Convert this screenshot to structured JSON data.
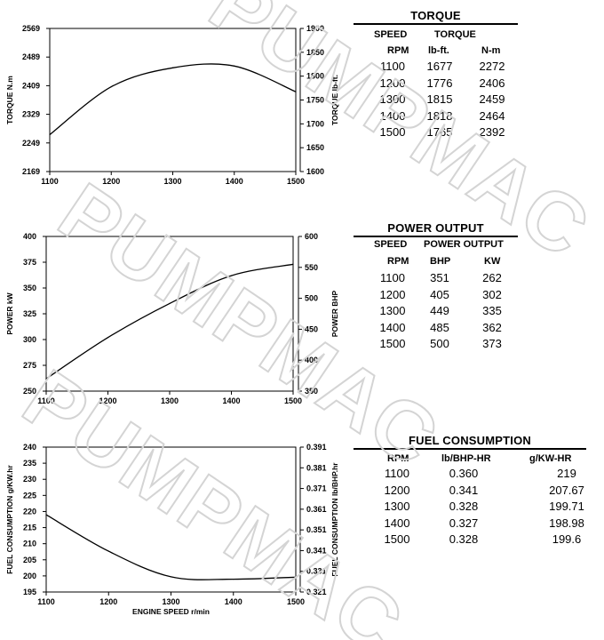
{
  "watermark": "PUMPMAC",
  "chart_data": [
    {
      "type": "line",
      "xlabel": "",
      "x": [
        1100,
        1200,
        1300,
        1400,
        1500
      ],
      "xlim": [
        1100,
        1500
      ],
      "xticks": [
        1100,
        1200,
        1300,
        1400,
        1500
      ],
      "ylabel": "TORQUE   N.m",
      "ylim": [
        2169,
        2569
      ],
      "yticks": [
        2169,
        2249,
        2329,
        2409,
        2489,
        2569
      ],
      "y2label": "TORQUE   lb-ft.",
      "y2lim": [
        1600,
        1900
      ],
      "y2ticks": [
        1600,
        1650,
        1700,
        1750,
        1800,
        1850,
        1900
      ],
      "series": [
        {
          "values": [
            2272,
            2406,
            2459,
            2464,
            2392
          ]
        }
      ]
    },
    {
      "type": "line",
      "xlabel": "",
      "x": [
        1100,
        1200,
        1300,
        1400,
        1500
      ],
      "xlim": [
        1100,
        1500
      ],
      "xticks": [
        1100,
        1200,
        1300,
        1400,
        1500
      ],
      "ylabel": "POWER     kW",
      "ylim": [
        250,
        400
      ],
      "yticks": [
        250,
        275,
        300,
        325,
        350,
        375,
        400
      ],
      "y2label": "POWER   BHP",
      "y2lim": [
        350,
        600
      ],
      "y2ticks": [
        350,
        400,
        450,
        500,
        550,
        600
      ],
      "series": [
        {
          "values": [
            262,
            302,
            335,
            362,
            373
          ]
        }
      ]
    },
    {
      "type": "line",
      "xlabel": "ENGINE SPEED   r/min",
      "x": [
        1100,
        1200,
        1300,
        1400,
        1500
      ],
      "xlim": [
        1100,
        1500
      ],
      "xticks": [
        1100,
        1200,
        1300,
        1400,
        1500
      ],
      "ylabel": "FUEL CONSUMPTION   g/KW.hr",
      "ylim": [
        195,
        240
      ],
      "yticks": [
        195,
        200,
        205,
        210,
        215,
        220,
        225,
        230,
        235,
        240
      ],
      "y2label": "FUEL CONSUMPTION   lb/BHP.hr",
      "y2lim": [
        0.321,
        0.391
      ],
      "y2ticks": [
        0.321,
        0.331,
        0.341,
        0.351,
        0.361,
        0.371,
        0.381,
        0.391
      ],
      "series": [
        {
          "values": [
            219,
            207.67,
            199.71,
            198.98,
            199.6
          ]
        }
      ]
    }
  ],
  "tables": {
    "torque": {
      "title": "TORQUE",
      "header_top": [
        "SPEED",
        "TORQUE"
      ],
      "header_bottom": [
        "RPM",
        "lb-ft.",
        "N-m"
      ],
      "rows": [
        [
          "1100",
          "1677",
          "2272"
        ],
        [
          "1200",
          "1776",
          "2406"
        ],
        [
          "1300",
          "1815",
          "2459"
        ],
        [
          "1400",
          "1818",
          "2464"
        ],
        [
          "1500",
          "1765",
          "2392"
        ]
      ]
    },
    "power": {
      "title": "POWER OUTPUT",
      "header_top": [
        "SPEED",
        "POWER OUTPUT"
      ],
      "header_bottom": [
        "RPM",
        "BHP",
        "KW"
      ],
      "rows": [
        [
          "1100",
          "351",
          "262"
        ],
        [
          "1200",
          "405",
          "302"
        ],
        [
          "1300",
          "449",
          "335"
        ],
        [
          "1400",
          "485",
          "362"
        ],
        [
          "1500",
          "500",
          "373"
        ]
      ]
    },
    "fuel": {
      "title": "FUEL CONSUMPTION",
      "header_bottom": [
        "RPM",
        "lb/BHP-HR",
        "g/KW-HR"
      ],
      "rows": [
        [
          "1100",
          "0.360",
          "219"
        ],
        [
          "1200",
          "0.341",
          "207.67"
        ],
        [
          "1300",
          "0.328",
          "199.71"
        ],
        [
          "1400",
          "0.327",
          "198.98"
        ],
        [
          "1500",
          "0.328",
          "199.6"
        ]
      ]
    }
  }
}
